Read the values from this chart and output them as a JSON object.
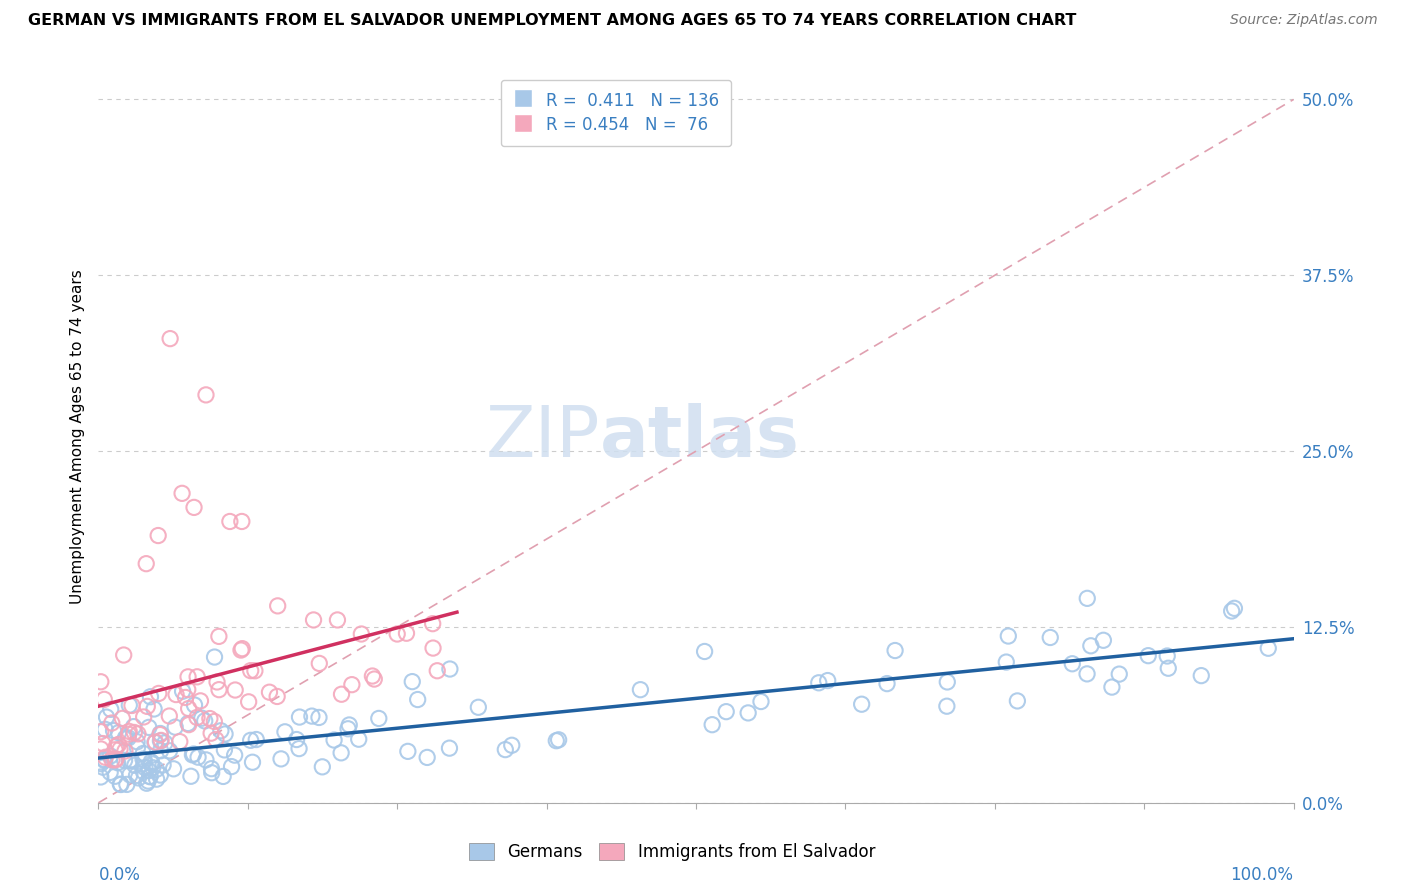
{
  "title": "GERMAN VS IMMIGRANTS FROM EL SALVADOR UNEMPLOYMENT AMONG AGES 65 TO 74 YEARS CORRELATION CHART",
  "source": "Source: ZipAtlas.com",
  "ylabel": "Unemployment Among Ages 65 to 74 years",
  "ytick_vals": [
    0.0,
    12.5,
    25.0,
    37.5,
    50.0
  ],
  "R_german": 0.411,
  "N_german": 136,
  "R_salvador": 0.454,
  "N_salvador": 76,
  "color_german": "#a8c8e8",
  "color_salvador": "#f4a8bc",
  "trendline_german": "#2060a0",
  "trendline_salvador": "#d03060",
  "diag_line_color": "#e0a0b0",
  "legend_german": "Germans",
  "legend_salvador": "Immigrants from El Salvador",
  "watermark_color": "#d0dff0"
}
